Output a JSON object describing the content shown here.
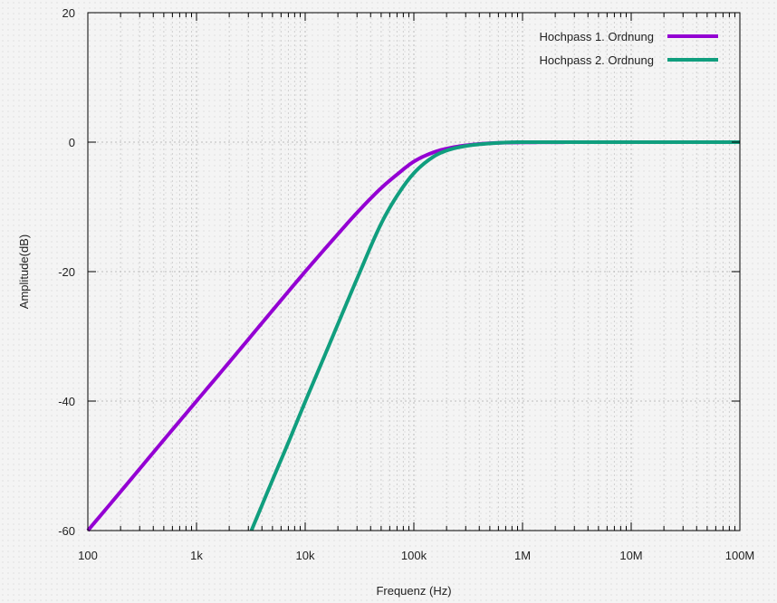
{
  "chart_data": {
    "type": "line",
    "xlabel": "Frequenz (Hz)",
    "ylabel": "Amplitude(dB)",
    "x_scale": "log",
    "xlim": [
      100,
      100000000
    ],
    "ylim": [
      -60,
      20
    ],
    "x_ticks": [
      {
        "value": 100,
        "label": "100"
      },
      {
        "value": 1000,
        "label": "1k"
      },
      {
        "value": 10000,
        "label": "10k"
      },
      {
        "value": 100000,
        "label": "100k"
      },
      {
        "value": 1000000,
        "label": "1M"
      },
      {
        "value": 10000000,
        "label": "10M"
      },
      {
        "value": 100000000,
        "label": "100M"
      }
    ],
    "y_ticks": [
      20,
      0,
      -20,
      -40,
      -60
    ],
    "grid": true,
    "legend_position": "top-right",
    "series": [
      {
        "name": "Hochpass 1. Ordnung",
        "color": "#9400d3",
        "x": [
          100,
          200,
          500,
          1000,
          2000,
          5000,
          10000,
          20000,
          30000,
          50000,
          70000,
          100000,
          150000,
          200000,
          300000,
          500000,
          1000000,
          10000000,
          100000000
        ],
        "y": [
          -60,
          -54,
          -46,
          -40,
          -34,
          -26,
          -20,
          -14.2,
          -10.9,
          -7.1,
          -5.0,
          -3.0,
          -1.6,
          -1.0,
          -0.5,
          -0.17,
          -0.04,
          0,
          0
        ]
      },
      {
        "name": "Hochpass 2. Ordnung",
        "color": "#109e7e",
        "x": [
          3200,
          5000,
          7000,
          10000,
          15000,
          20000,
          30000,
          50000,
          70000,
          100000,
          150000,
          200000,
          300000,
          500000,
          1000000,
          10000000,
          100000000
        ],
        "y": [
          -60,
          -52.2,
          -46.4,
          -40.1,
          -33.1,
          -28.1,
          -21.1,
          -12.6,
          -8.3,
          -4.8,
          -2.3,
          -1.3,
          -0.6,
          -0.2,
          0,
          0,
          0
        ]
      }
    ]
  }
}
